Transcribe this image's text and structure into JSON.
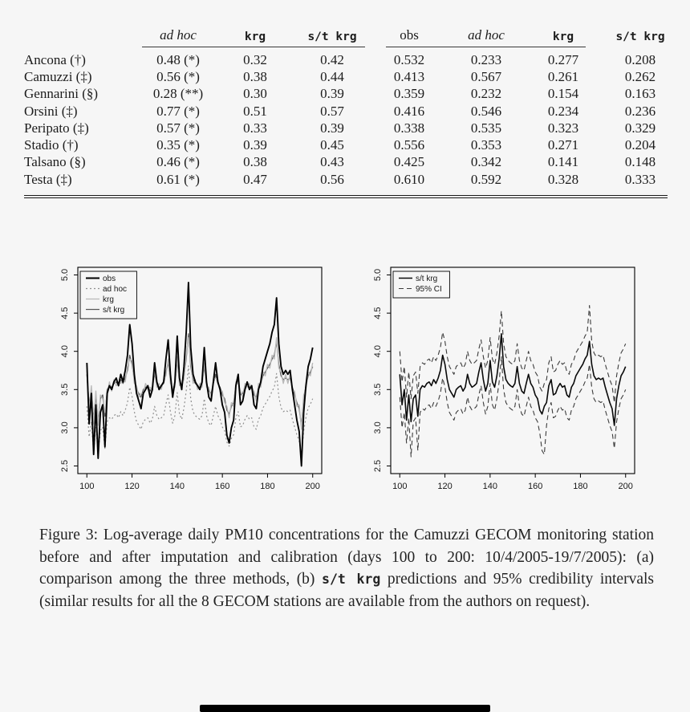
{
  "page": {
    "background": "#f6f6f6"
  },
  "table": {
    "headers": [
      {
        "label": "ad hoc",
        "font": "italic"
      },
      {
        "label": "krg",
        "font": "mono"
      },
      {
        "label": "s/t krg",
        "font": "mono"
      },
      {
        "label": "obs",
        "font": "serif"
      },
      {
        "label": "ad hoc",
        "font": "italic"
      },
      {
        "label": "krg",
        "font": "mono"
      },
      {
        "label": "s/t krg",
        "font": "mono"
      }
    ],
    "rows": [
      {
        "station": "Ancona (†)",
        "values": [
          "0.48 (*)",
          "0.32",
          "0.42",
          "0.532",
          "0.233",
          "0.277",
          "0.208"
        ]
      },
      {
        "station": "Camuzzi (‡)",
        "values": [
          "0.56 (*)",
          "0.38",
          "0.44",
          "0.413",
          "0.567",
          "0.261",
          "0.262"
        ]
      },
      {
        "station": "Gennarini (§)",
        "values": [
          "0.28 (**)",
          "0.30",
          "0.39",
          "0.359",
          "0.232",
          "0.154",
          "0.163"
        ]
      },
      {
        "station": "Orsini (‡)",
        "values": [
          "0.77 (*)",
          "0.51",
          "0.57",
          "0.416",
          "0.546",
          "0.234",
          "0.236"
        ]
      },
      {
        "station": "Peripato (‡)",
        "values": [
          "0.57 (*)",
          "0.33",
          "0.39",
          "0.338",
          "0.535",
          "0.323",
          "0.329"
        ]
      },
      {
        "station": "Stadio (†)",
        "values": [
          "0.35 (*)",
          "0.39",
          "0.45",
          "0.556",
          "0.353",
          "0.271",
          "0.204"
        ]
      },
      {
        "station": "Talsano (§)",
        "values": [
          "0.46 (*)",
          "0.38",
          "0.43",
          "0.425",
          "0.342",
          "0.141",
          "0.148"
        ]
      },
      {
        "station": "Testa (‡)",
        "values": [
          "0.61 (*)",
          "0.47",
          "0.56",
          "0.610",
          "0.592",
          "0.328",
          "0.333"
        ]
      }
    ]
  },
  "caption": {
    "prefix": "Figure 3: Log-average daily PM10 concentrations for the Camuzzi GECOM monitoring station before and after imputation and calibration (days 100 to 200: 10/4/2005-19/7/2005): (a) comparison among the three methods, (b) ",
    "mono": "s/t krg",
    "suffix": " predictions and 95% credibility intervals (similar results for all the 8 GECOM stations are available from the authors on request)."
  },
  "chart_data": [
    {
      "id": "a",
      "type": "line",
      "title": "",
      "xlabel": "",
      "ylabel": "",
      "x_start": 100,
      "x_step": 1,
      "xticks": [
        100,
        120,
        140,
        160,
        180,
        200
      ],
      "yticks": [
        2.5,
        3.0,
        3.5,
        4.0,
        4.5,
        5.0
      ],
      "xlim": [
        96,
        204
      ],
      "ylim": [
        2.4,
        5.1
      ],
      "grid": false,
      "legend_position": "top-left",
      "series": [
        {
          "name": "obs",
          "color": "#000000",
          "width": 1.9,
          "dash": "",
          "values": [
            3.85,
            3.05,
            3.45,
            2.65,
            3.3,
            2.6,
            3.2,
            3.3,
            2.75,
            3.45,
            3.55,
            3.5,
            3.6,
            3.65,
            3.55,
            3.7,
            3.6,
            3.75,
            3.95,
            4.35,
            4.1,
            3.7,
            3.45,
            3.35,
            3.25,
            3.45,
            3.5,
            3.55,
            3.4,
            3.5,
            3.85,
            3.6,
            3.5,
            3.55,
            3.6,
            3.9,
            4.15,
            3.7,
            3.4,
            3.6,
            4.2,
            3.65,
            3.5,
            3.8,
            4.25,
            4.9,
            4.05,
            3.7,
            3.6,
            3.55,
            3.5,
            3.6,
            4.05,
            3.6,
            3.4,
            3.35,
            3.6,
            3.85,
            3.6,
            3.5,
            3.3,
            3.2,
            2.9,
            2.8,
            3.0,
            3.1,
            3.55,
            3.7,
            3.3,
            3.35,
            3.5,
            3.6,
            3.5,
            3.55,
            3.3,
            3.25,
            3.5,
            3.6,
            3.8,
            3.9,
            4.0,
            4.1,
            4.25,
            4.35,
            4.7,
            4.1,
            3.8,
            3.7,
            3.75,
            3.7,
            3.75,
            3.5,
            3.3,
            3.1,
            2.95,
            2.5,
            3.2,
            3.55,
            3.8,
            3.9,
            4.05
          ]
        },
        {
          "name": "ad hoc",
          "color": "#8f8f8f",
          "width": 1.2,
          "dash": "2,3",
          "values": [
            3.28,
            2.88,
            3.08,
            2.68,
            3.01,
            2.66,
            2.96,
            3.01,
            2.73,
            3.08,
            3.13,
            3.11,
            3.16,
            3.18,
            3.13,
            3.21,
            3.16,
            3.23,
            3.33,
            3.53,
            3.41,
            3.21,
            3.08,
            3.03,
            2.98,
            3.08,
            3.11,
            3.13,
            3.06,
            3.11,
            3.28,
            3.16,
            3.11,
            3.13,
            3.16,
            3.31,
            3.43,
            3.21,
            3.06,
            3.16,
            3.46,
            3.18,
            3.11,
            3.26,
            3.48,
            3.81,
            3.38,
            3.21,
            3.16,
            3.13,
            3.11,
            3.16,
            3.38,
            3.16,
            3.06,
            3.03,
            3.16,
            3.28,
            3.16,
            3.11,
            3.01,
            2.96,
            2.81,
            2.76,
            2.86,
            2.91,
            3.13,
            3.21,
            3.01,
            3.03,
            3.11,
            3.16,
            3.11,
            3.13,
            3.01,
            2.98,
            3.11,
            3.16,
            3.26,
            3.31,
            3.36,
            3.41,
            3.48,
            3.53,
            3.71,
            3.41,
            3.26,
            3.21,
            3.23,
            3.21,
            3.23,
            3.11,
            3.01,
            2.91,
            2.83,
            2.61,
            2.96,
            3.13,
            3.26,
            3.31,
            3.38
          ]
        },
        {
          "name": "krg",
          "color": "#b8b8b8",
          "width": 1.3,
          "dash": "",
          "values": [
            3.75,
            3.25,
            3.55,
            3.05,
            3.48,
            3.03,
            3.43,
            3.38,
            3.2,
            3.45,
            3.6,
            3.48,
            3.63,
            3.55,
            3.6,
            3.58,
            3.63,
            3.6,
            3.8,
            3.9,
            3.88,
            3.58,
            3.55,
            3.4,
            3.45,
            3.45,
            3.58,
            3.5,
            3.53,
            3.48,
            3.75,
            3.53,
            3.58,
            3.5,
            3.63,
            3.68,
            3.9,
            3.58,
            3.53,
            3.53,
            3.93,
            3.55,
            3.58,
            3.63,
            3.95,
            4.18,
            3.85,
            3.58,
            3.63,
            3.5,
            3.58,
            3.53,
            3.85,
            3.53,
            3.53,
            3.4,
            3.63,
            3.65,
            3.63,
            3.48,
            3.48,
            3.33,
            3.28,
            3.13,
            3.33,
            3.28,
            3.6,
            3.58,
            3.48,
            3.4,
            3.58,
            3.53,
            3.58,
            3.5,
            3.48,
            3.35,
            3.58,
            3.53,
            3.73,
            3.68,
            3.83,
            3.78,
            3.95,
            3.9,
            4.18,
            3.78,
            3.73,
            3.58,
            3.7,
            3.58,
            3.7,
            3.48,
            3.48,
            3.28,
            3.3,
            2.98,
            3.43,
            3.5,
            3.73,
            3.68,
            3.85
          ]
        },
        {
          "name": "s/t krg",
          "color": "#5a5a5a",
          "width": 1.3,
          "dash": "",
          "values": [
            3.7,
            3.3,
            3.5,
            3.1,
            3.43,
            3.08,
            3.38,
            3.43,
            3.15,
            3.5,
            3.55,
            3.53,
            3.58,
            3.6,
            3.55,
            3.63,
            3.58,
            3.65,
            3.75,
            3.95,
            3.83,
            3.63,
            3.5,
            3.45,
            3.4,
            3.5,
            3.53,
            3.55,
            3.48,
            3.53,
            3.7,
            3.58,
            3.53,
            3.55,
            3.58,
            3.73,
            3.85,
            3.63,
            3.48,
            3.58,
            3.88,
            3.6,
            3.53,
            3.68,
            3.9,
            4.23,
            3.8,
            3.63,
            3.58,
            3.55,
            3.53,
            3.58,
            3.8,
            3.58,
            3.48,
            3.45,
            3.58,
            3.7,
            3.58,
            3.53,
            3.43,
            3.38,
            3.23,
            3.18,
            3.28,
            3.33,
            3.55,
            3.63,
            3.43,
            3.45,
            3.53,
            3.58,
            3.53,
            3.55,
            3.43,
            3.4,
            3.53,
            3.58,
            3.68,
            3.73,
            3.78,
            3.83,
            3.9,
            3.95,
            4.13,
            3.83,
            3.68,
            3.63,
            3.65,
            3.63,
            3.65,
            3.53,
            3.43,
            3.33,
            3.25,
            3.03,
            3.38,
            3.55,
            3.68,
            3.73,
            3.8
          ]
        }
      ]
    },
    {
      "id": "b",
      "type": "line",
      "title": "",
      "xlabel": "",
      "ylabel": "",
      "x_start": 100,
      "x_step": 1,
      "xticks": [
        100,
        120,
        140,
        160,
        180,
        200
      ],
      "yticks": [
        2.5,
        3.0,
        3.5,
        4.0,
        4.5,
        5.0
      ],
      "xlim": [
        96,
        204
      ],
      "ylim": [
        2.4,
        5.1
      ],
      "grid": false,
      "legend_position": "top-left",
      "series": [
        {
          "name": "s/t krg",
          "color": "#0a0a0a",
          "width": 1.6,
          "dash": "",
          "values": [
            3.7,
            3.3,
            3.5,
            3.1,
            3.43,
            3.08,
            3.38,
            3.43,
            3.15,
            3.5,
            3.55,
            3.53,
            3.58,
            3.6,
            3.55,
            3.63,
            3.58,
            3.65,
            3.75,
            3.95,
            3.83,
            3.63,
            3.5,
            3.45,
            3.4,
            3.5,
            3.53,
            3.55,
            3.48,
            3.53,
            3.7,
            3.58,
            3.53,
            3.55,
            3.58,
            3.73,
            3.85,
            3.63,
            3.48,
            3.58,
            3.88,
            3.6,
            3.53,
            3.68,
            3.9,
            4.23,
            3.8,
            3.63,
            3.58,
            3.55,
            3.53,
            3.58,
            3.8,
            3.58,
            3.48,
            3.45,
            3.58,
            3.7,
            3.58,
            3.53,
            3.43,
            3.38,
            3.23,
            3.18,
            3.28,
            3.33,
            3.55,
            3.63,
            3.43,
            3.45,
            3.53,
            3.58,
            3.53,
            3.55,
            3.43,
            3.4,
            3.53,
            3.58,
            3.68,
            3.73,
            3.78,
            3.83,
            3.9,
            3.95,
            4.13,
            3.83,
            3.68,
            3.63,
            3.65,
            3.63,
            3.65,
            3.53,
            3.43,
            3.33,
            3.25,
            3.03,
            3.38,
            3.55,
            3.68,
            3.73,
            3.8
          ]
        },
        {
          "name": "95% CI",
          "color": "#3c3c3c",
          "width": 1.1,
          "dash": "6,4",
          "values": [
            4.0,
            3.6,
            3.8,
            3.4,
            3.73,
            3.38,
            3.68,
            3.73,
            3.45,
            3.8,
            3.85,
            3.83,
            3.88,
            3.9,
            3.85,
            3.93,
            3.88,
            3.95,
            4.05,
            4.25,
            4.13,
            3.93,
            3.8,
            3.75,
            3.7,
            3.8,
            3.83,
            3.85,
            3.78,
            3.83,
            4.0,
            3.88,
            3.83,
            3.85,
            3.88,
            4.03,
            4.15,
            3.93,
            3.78,
            3.88,
            4.18,
            3.9,
            3.83,
            3.98,
            4.2,
            4.53,
            4.1,
            3.93,
            3.88,
            3.85,
            3.83,
            3.88,
            4.1,
            3.88,
            3.78,
            3.75,
            3.88,
            4.0,
            3.88,
            3.83,
            3.73,
            3.68,
            3.53,
            3.48,
            3.58,
            3.63,
            3.85,
            3.93,
            3.73,
            3.75,
            3.83,
            3.88,
            3.83,
            3.85,
            3.73,
            3.7,
            3.83,
            3.88,
            3.98,
            4.03,
            4.08,
            4.13,
            4.2,
            4.25,
            4.6,
            4.13,
            3.98,
            3.93,
            3.95,
            3.93,
            3.95,
            3.83,
            3.73,
            3.63,
            3.55,
            3.33,
            3.68,
            3.85,
            3.98,
            4.03,
            4.1
          ]
        },
        {
          "name": "95% CI lower",
          "in_legend": false,
          "color": "#3c3c3c",
          "width": 1.1,
          "dash": "6,4",
          "values": [
            3.4,
            3.0,
            3.2,
            2.8,
            3.13,
            2.62,
            3.08,
            3.13,
            2.7,
            3.2,
            3.25,
            3.23,
            3.28,
            3.3,
            3.25,
            3.33,
            3.28,
            3.35,
            3.45,
            3.65,
            3.53,
            3.33,
            3.2,
            3.15,
            3.1,
            3.2,
            3.23,
            3.25,
            3.18,
            3.23,
            3.4,
            3.28,
            3.23,
            3.25,
            3.28,
            3.43,
            3.55,
            3.33,
            3.18,
            3.28,
            3.58,
            3.3,
            3.23,
            3.38,
            3.6,
            3.93,
            3.5,
            3.33,
            3.28,
            3.25,
            3.23,
            3.28,
            3.5,
            3.28,
            3.18,
            3.15,
            3.28,
            3.4,
            3.28,
            3.23,
            3.13,
            3.08,
            2.93,
            2.7,
            2.65,
            3.03,
            3.25,
            3.33,
            3.13,
            3.15,
            3.23,
            3.28,
            3.23,
            3.25,
            3.13,
            3.1,
            3.23,
            3.28,
            3.38,
            3.43,
            3.48,
            3.53,
            3.6,
            3.65,
            3.83,
            3.53,
            3.38,
            3.33,
            3.35,
            3.33,
            3.35,
            3.23,
            3.13,
            3.03,
            2.95,
            2.73,
            3.08,
            3.25,
            3.38,
            3.43,
            3.5
          ]
        }
      ]
    }
  ]
}
